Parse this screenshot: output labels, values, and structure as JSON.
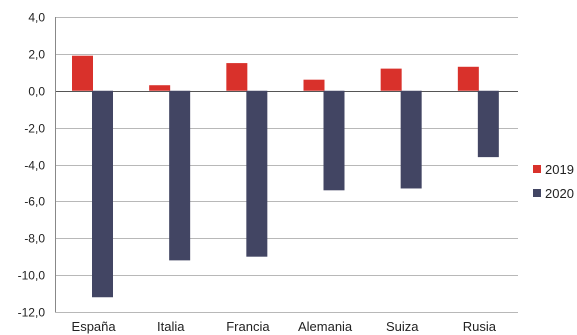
{
  "chart_data": {
    "type": "bar",
    "categories": [
      "España",
      "Italia",
      "Francia",
      "Alemania",
      "Suiza",
      "Rusia"
    ],
    "series": [
      {
        "name": "2019",
        "color": "#d9312b",
        "values": [
          1.9,
          0.3,
          1.5,
          0.6,
          1.2,
          1.3
        ]
      },
      {
        "name": "2020",
        "color": "#424563",
        "values": [
          -11.2,
          -9.2,
          -9.0,
          -5.4,
          -5.3,
          -3.6
        ]
      }
    ],
    "yticks": [
      "4,0",
      "2,0",
      "0,0",
      "-2,0",
      "-4,0",
      "-6,0",
      "-8,0",
      "-10,0",
      "-12,0"
    ],
    "ylim": [
      -12,
      4
    ],
    "grid": true,
    "legend_position": "right"
  }
}
